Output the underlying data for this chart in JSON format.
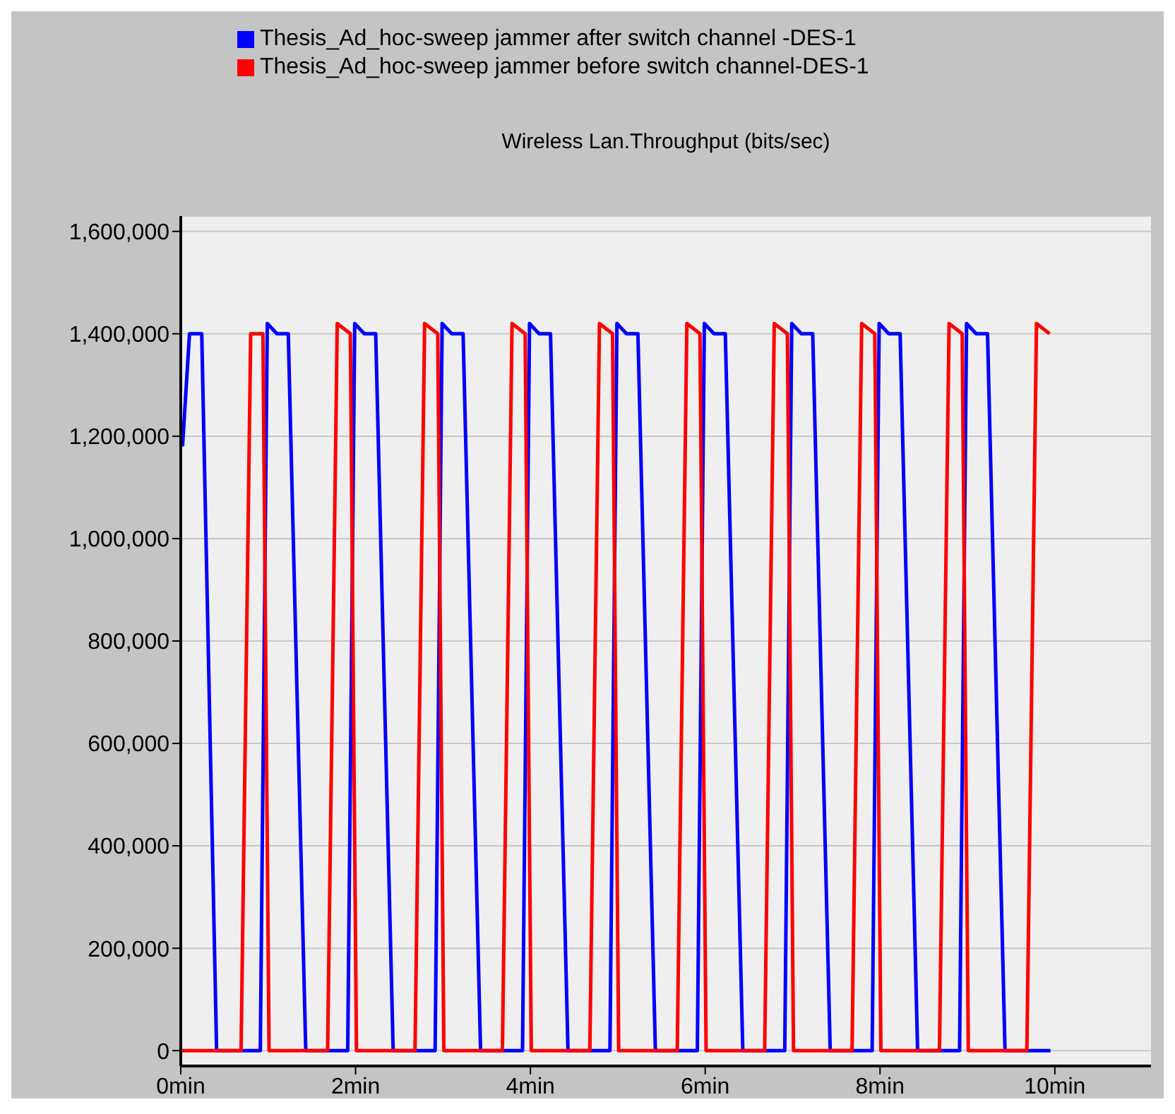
{
  "chart_data": {
    "type": "line",
    "title": "Wireless Lan.Throughput (bits/sec)",
    "series": [
      {
        "name": "Thesis_Ad_hoc-sweep jammer after switch channel -DES-1",
        "color": "#0000ff",
        "x": [
          0.02,
          0.1,
          0.24,
          0.41,
          0.91,
          0.99,
          1.1,
          1.23,
          1.43,
          1.91,
          1.99,
          2.1,
          2.23,
          2.43,
          2.91,
          2.99,
          3.1,
          3.23,
          3.43,
          3.91,
          3.99,
          4.1,
          4.23,
          4.43,
          4.91,
          4.99,
          5.1,
          5.23,
          5.43,
          5.91,
          5.99,
          6.1,
          6.23,
          6.43,
          6.91,
          6.99,
          7.1,
          7.23,
          7.43,
          7.91,
          7.99,
          8.1,
          8.23,
          8.43,
          8.91,
          8.99,
          9.1,
          9.23,
          9.43,
          9.95
        ],
        "values": [
          1180000,
          1400000,
          1400000,
          0,
          0,
          1420000,
          1400000,
          1400000,
          0,
          0,
          1420000,
          1400000,
          1400000,
          0,
          0,
          1420000,
          1400000,
          1400000,
          0,
          0,
          1420000,
          1400000,
          1400000,
          0,
          0,
          1420000,
          1400000,
          1400000,
          0,
          0,
          1420000,
          1400000,
          1400000,
          0,
          0,
          1420000,
          1400000,
          1400000,
          0,
          0,
          1420000,
          1400000,
          1400000,
          0,
          0,
          1420000,
          1400000,
          1400000,
          0,
          0
        ]
      },
      {
        "name": "Thesis_Ad_hoc-sweep jammer before switch channel-DES-1",
        "color": "#ff0000",
        "x": [
          0,
          0.69,
          0.8,
          0.94,
          1.01,
          1.68,
          1.79,
          1.94,
          2.01,
          2.68,
          2.79,
          2.94,
          3.01,
          3.68,
          3.79,
          3.94,
          4.01,
          4.68,
          4.79,
          4.94,
          5.01,
          5.68,
          5.79,
          5.94,
          6.01,
          6.68,
          6.79,
          6.94,
          7.01,
          7.68,
          7.79,
          7.94,
          8.01,
          8.68,
          8.79,
          8.94,
          9.01,
          9.68,
          9.79,
          9.94
        ],
        "values": [
          0,
          0,
          1400000,
          1400000,
          0,
          0,
          1420000,
          1400000,
          0,
          0,
          1420000,
          1400000,
          0,
          0,
          1420000,
          1400000,
          0,
          0,
          1420000,
          1400000,
          0,
          0,
          1420000,
          1400000,
          0,
          0,
          1420000,
          1400000,
          0,
          0,
          1420000,
          1400000,
          0,
          0,
          1420000,
          1400000,
          0,
          0,
          1420000,
          1400000
        ]
      }
    ],
    "xlim": [
      0,
      11.1
    ],
    "xticks": [
      {
        "value": 0,
        "label": "0min"
      },
      {
        "value": 2,
        "label": "2min"
      },
      {
        "value": 4,
        "label": "4min"
      },
      {
        "value": 6,
        "label": "6min"
      },
      {
        "value": 8,
        "label": "8min"
      },
      {
        "value": 10,
        "label": "10min"
      }
    ],
    "ylim": [
      -30000,
      1630000
    ],
    "yticks": [
      {
        "value": 0,
        "label": "0"
      },
      {
        "value": 200000,
        "label": "200,000"
      },
      {
        "value": 400000,
        "label": "400,000"
      },
      {
        "value": 600000,
        "label": "600,000"
      },
      {
        "value": 800000,
        "label": "800,000"
      },
      {
        "value": 1000000,
        "label": "1,000,000"
      },
      {
        "value": 1200000,
        "label": "1,200,000"
      },
      {
        "value": 1400000,
        "label": "1,400,000"
      },
      {
        "value": 1600000,
        "label": "1,600,000"
      }
    ],
    "grid": "y",
    "legend": "top",
    "marker": "none",
    "line_style": "solid"
  }
}
